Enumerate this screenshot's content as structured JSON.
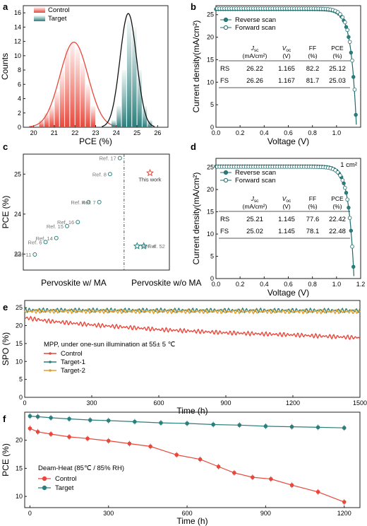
{
  "panels": {
    "a": "a",
    "b": "b",
    "c": "c",
    "d": "d",
    "e": "e",
    "f": "f"
  },
  "colors": {
    "control": "#e8473a",
    "target": "#2a7f7c",
    "target_dark": "#1e6b6a",
    "target2": "#e0a030",
    "star": "#e8473a"
  },
  "chart_data": [
    {
      "id": "a",
      "type": "bar",
      "xlabel": "PCE (%)",
      "ylabel": "Counts",
      "xlim": [
        19.5,
        26.5
      ],
      "ylim": [
        0,
        17
      ],
      "xticks": [
        "20",
        "21",
        "22",
        "23",
        "24",
        "25",
        "26"
      ],
      "yticks": [
        "0",
        "2",
        "4",
        "6",
        "8",
        "10",
        "12",
        "14",
        "16"
      ],
      "legend": [
        "Control",
        "Target"
      ],
      "legend_position": "top-left",
      "bin_width": 0.25,
      "series": [
        {
          "name": "Control",
          "centers": [
            20.375,
            20.625,
            20.875,
            21.125,
            21.375,
            21.625,
            21.875,
            22.125,
            22.375,
            22.625,
            22.875
          ],
          "values": [
            1,
            2,
            3,
            5,
            8,
            11,
            12,
            11,
            9,
            6,
            3
          ],
          "fit": {
            "mean": 21.95,
            "sigma": 0.68,
            "peak": 11.9
          }
        },
        {
          "name": "Target",
          "centers": [
            23.875,
            24.125,
            24.375,
            24.625,
            24.875,
            25.125,
            25.375,
            25.625
          ],
          "values": [
            1,
            3,
            8,
            15,
            14,
            8,
            3,
            1
          ],
          "fit": {
            "mean": 24.58,
            "sigma": 0.4,
            "peak": 15.9
          }
        }
      ]
    },
    {
      "id": "b",
      "type": "line",
      "xlabel": "Voltage (V)",
      "ylabel": "Current density(mA/cm²)",
      "xlim": [
        0,
        1.2
      ],
      "ylim": [
        0,
        27
      ],
      "xticks": [
        "0.0",
        "0.2",
        "0.4",
        "0.6",
        "0.8",
        "1.0"
      ],
      "yticks": [
        "0",
        "5",
        "10",
        "15",
        "20",
        "25"
      ],
      "legend": [
        "Reverse scan",
        "Forward scan"
      ],
      "legend_position": "top-left",
      "series": [
        {
          "name": "Reverse scan",
          "jsc": 26.22,
          "voc": 1.165
        },
        {
          "name": "Forward scan",
          "jsc": 26.26,
          "voc": 1.167
        }
      ],
      "table": {
        "headers": [
          "",
          "J",
          "V",
          "FF",
          "PCE"
        ],
        "header_subs": [
          "",
          "sc",
          "oc",
          "",
          ""
        ],
        "units": [
          "",
          "(mA/cm²)",
          "(V)",
          "(%)",
          "(%)"
        ],
        "rows": [
          [
            "RS",
            "26.22",
            "1.165",
            "82.2",
            "25.12"
          ],
          [
            "FS",
            "26.26",
            "1.167",
            "81.7",
            "25.03"
          ]
        ]
      }
    },
    {
      "id": "c",
      "type": "scatter",
      "ylabel": "PCE (%)",
      "ylim": [
        22.6,
        25.5
      ],
      "yticks": [
        "23",
        "24",
        "25"
      ],
      "group_labels": [
        "Pervoskite w/ MA",
        "Pervoskite w/o MA"
      ],
      "points": [
        {
          "label": "Ref. 11",
          "group": 0,
          "pos": 0.05,
          "y": 22.99
        },
        {
          "label": "Ref. 6",
          "group": 0,
          "pos": 0.17,
          "y": 23.3
        },
        {
          "label": "Ref. 14",
          "group": 0,
          "pos": 0.29,
          "y": 23.4
        },
        {
          "label": "Ref. 15",
          "group": 0,
          "pos": 0.41,
          "y": 23.7
        },
        {
          "label": "Ref. 16",
          "group": 0,
          "pos": 0.53,
          "y": 23.8
        },
        {
          "label": "Ref. 4",
          "group": 0,
          "pos": 0.65,
          "y": 24.3
        },
        {
          "label": "Ref. 7",
          "group": 0,
          "pos": 0.77,
          "y": 24.3
        },
        {
          "label": "Ref. 8",
          "group": 0,
          "pos": 0.89,
          "y": 25.0
        },
        {
          "label": "Ref. 17",
          "group": 0,
          "pos": 1.0,
          "y": 25.4
        },
        {
          "label": "Ref. 4",
          "group": 1,
          "pos": 0.2,
          "y": 23.2,
          "marker": "star"
        },
        {
          "label": "Ref. 52",
          "group": 1,
          "pos": 0.38,
          "y": 23.2,
          "marker": "star"
        },
        {
          "label": "This work",
          "group": 1,
          "pos": 0.55,
          "y": 25.03,
          "marker": "star",
          "highlight": true
        }
      ]
    },
    {
      "id": "d",
      "type": "line",
      "annotation": "1 cm²",
      "xlabel": "Voltage (V)",
      "ylabel": "Current density(mA/cm²)",
      "xlim": [
        0,
        1.2
      ],
      "ylim": [
        0,
        27
      ],
      "xticks": [
        "0.0",
        "0.2",
        "0.4",
        "0.6",
        "0.8",
        "1.0",
        "1.2"
      ],
      "yticks": [
        "0",
        "5",
        "10",
        "15",
        "20",
        "25"
      ],
      "legend": [
        "Reverse scan",
        "Forward scan"
      ],
      "legend_position": "top-left",
      "series": [
        {
          "name": "Reverse scan",
          "jsc": 25.21,
          "voc": 1.145
        },
        {
          "name": "Forward scan",
          "jsc": 25.02,
          "voc": 1.145
        }
      ],
      "table": {
        "headers": [
          "",
          "J",
          "V",
          "FF",
          "PCE"
        ],
        "header_subs": [
          "",
          "sc",
          "oc",
          "",
          ""
        ],
        "units": [
          "",
          "(mA/cm²)",
          "(V)",
          "(%)",
          "(%)"
        ],
        "rows": [
          [
            "RS",
            "25.21",
            "1.145",
            "77.6",
            "22.42"
          ],
          [
            "FS",
            "25.02",
            "1.145",
            "78.1",
            "22.48"
          ]
        ]
      }
    },
    {
      "id": "e",
      "type": "line",
      "xlabel": "Time (h)",
      "ylabel": "SPO (%)",
      "xlim": [
        0,
        1500
      ],
      "ylim": [
        0,
        27
      ],
      "xticks": [
        "0",
        "300",
        "600",
        "900",
        "1200",
        "1500"
      ],
      "yticks": [
        "0",
        "5",
        "10",
        "15",
        "20",
        "25"
      ],
      "annotation": "MPP, under one-sun illumination at 55± 5 ℃",
      "legend": [
        "Control",
        "Target-1",
        "Target-2"
      ],
      "legend_position": "center-left",
      "series": [
        {
          "name": "Control",
          "x": [
            0,
            100,
            300,
            600,
            900,
            1200,
            1500
          ],
          "y": [
            22.2,
            21.3,
            20.2,
            18.9,
            18.0,
            17.4,
            16.6
          ]
        },
        {
          "name": "Target-1",
          "x": [
            0,
            1500
          ],
          "y": [
            24.3,
            24.2
          ]
        },
        {
          "name": "Target-2",
          "x": [
            0,
            1500
          ],
          "y": [
            24.0,
            23.9
          ]
        }
      ]
    },
    {
      "id": "f",
      "type": "line",
      "xlabel": "Time (h)",
      "ylabel": "PCE (%)",
      "xlim": [
        -20,
        1260
      ],
      "ylim": [
        8,
        25
      ],
      "xticks": [
        "0",
        "300",
        "600",
        "900",
        "1200"
      ],
      "yticks": [
        "10",
        "15",
        "20"
      ],
      "annotation": "Deam-Heat (85℃ / 85% RH)",
      "legend": [
        "Control",
        "Target"
      ],
      "legend_position": "bottom-left",
      "series": [
        {
          "name": "Control",
          "x": [
            0,
            30,
            80,
            150,
            220,
            300,
            380,
            460,
            560,
            650,
            720,
            780,
            850,
            920,
            1000,
            1100,
            1200
          ],
          "y": [
            22.1,
            21.5,
            21.1,
            20.6,
            20.3,
            19.9,
            19.4,
            18.9,
            17.4,
            16.6,
            15.3,
            14.2,
            13.4,
            13.1,
            12.0,
            10.8,
            9.0
          ]
        },
        {
          "name": "Target",
          "x": [
            0,
            30,
            80,
            150,
            230,
            300,
            400,
            500,
            600,
            700,
            800,
            900,
            1000,
            1100,
            1200
          ],
          "y": [
            24.3,
            24.2,
            24.0,
            23.8,
            23.6,
            23.5,
            23.3,
            23.1,
            23.0,
            22.8,
            22.7,
            22.5,
            22.4,
            22.3,
            22.2
          ]
        }
      ]
    }
  ]
}
